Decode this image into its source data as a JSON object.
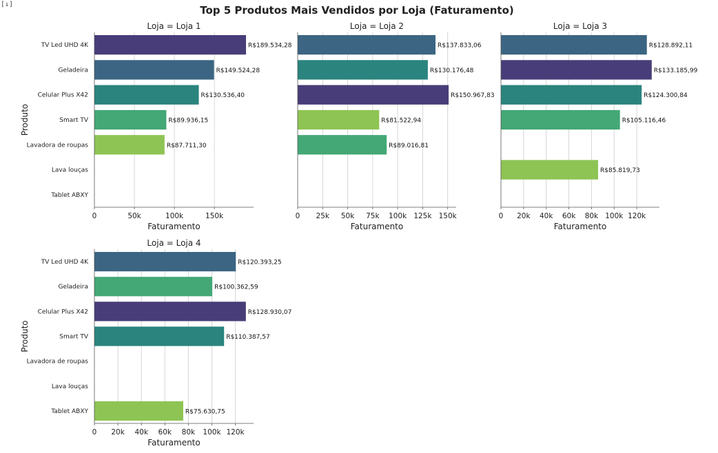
{
  "chart_data": {
    "type": "bar",
    "orientation": "horizontal",
    "title": "Top 5 Produtos Mais Vendidos por Loja (Faturamento)",
    "xlabel": "Faturamento",
    "ylabel": "Produto",
    "grid": true,
    "legend": "none",
    "categories": [
      "TV Led UHD 4K",
      "Geladeira",
      "Celular Plus X42",
      "Smart TV",
      "Lavadora de roupas",
      "Lava louças",
      "Tablet ABXY"
    ],
    "panels": [
      {
        "title": "Loja = Loja 1",
        "values": [
          189534.28,
          149524.28,
          130536.4,
          89936.15,
          87711.3,
          null,
          null
        ],
        "labels": [
          "R$189.534,28",
          "R$149.524,28",
          "R$130.536,40",
          "R$89.936,15",
          "R$87.711,30",
          "",
          ""
        ],
        "colors": [
          "#483d78",
          "#3b6582",
          "#2b847e",
          "#43a776",
          "#8ec454",
          "",
          ""
        ],
        "xlim": [
          0,
          199000
        ],
        "xticks": [
          0,
          50000,
          100000,
          150000
        ],
        "xtick_labels": [
          "0",
          "50k",
          "100k",
          "150k"
        ]
      },
      {
        "title": "Loja = Loja 2",
        "values": [
          137833.06,
          130176.48,
          150967.83,
          81522.94,
          89016.81,
          null,
          null
        ],
        "labels": [
          "R$137.833,06",
          "R$130.176,48",
          "R$150.967,83",
          "R$81.522,94",
          "R$89.016,81",
          "",
          ""
        ],
        "colors": [
          "#3b6582",
          "#2b847e",
          "#483d78",
          "#8ec454",
          "#43a776",
          "",
          ""
        ],
        "xlim": [
          0,
          158500
        ],
        "xticks": [
          0,
          25000,
          50000,
          75000,
          100000,
          125000,
          150000
        ],
        "xtick_labels": [
          "0",
          "25k",
          "50k",
          "75k",
          "100k",
          "125k",
          "150k"
        ]
      },
      {
        "title": "Loja = Loja 3",
        "values": [
          128892.11,
          133185.99,
          124300.84,
          105116.46,
          null,
          85819.73,
          null
        ],
        "labels": [
          "R$128.892,11",
          "R$133.185,99",
          "R$124.300,84",
          "R$105.116,46",
          "",
          "R$85.819,73",
          ""
        ],
        "colors": [
          "#3b6582",
          "#483d78",
          "#2b847e",
          "#43a776",
          "",
          "#8ec454",
          ""
        ],
        "xlim": [
          0,
          140000
        ],
        "xticks": [
          0,
          20000,
          40000,
          60000,
          80000,
          100000,
          120000
        ],
        "xtick_labels": [
          "0",
          "20k",
          "40k",
          "60k",
          "80k",
          "100k",
          "120k"
        ]
      },
      {
        "title": "Loja = Loja 4",
        "values": [
          120393.25,
          100362.59,
          128930.07,
          110387.57,
          null,
          null,
          75630.75
        ],
        "labels": [
          "R$120.393,25",
          "R$100.362,59",
          "R$128.930,07",
          "R$110.387,57",
          "",
          "",
          "R$75.630,75"
        ],
        "colors": [
          "#3b6582",
          "#43a776",
          "#483d78",
          "#2b847e",
          "",
          "",
          "#8ec454"
        ],
        "xlim": [
          0,
          135500
        ],
        "xticks": [
          0,
          20000,
          40000,
          60000,
          80000,
          100000,
          120000
        ],
        "xtick_labels": [
          "0",
          "20k",
          "40k",
          "60k",
          "80k",
          "100k",
          "120k"
        ]
      }
    ]
  }
}
